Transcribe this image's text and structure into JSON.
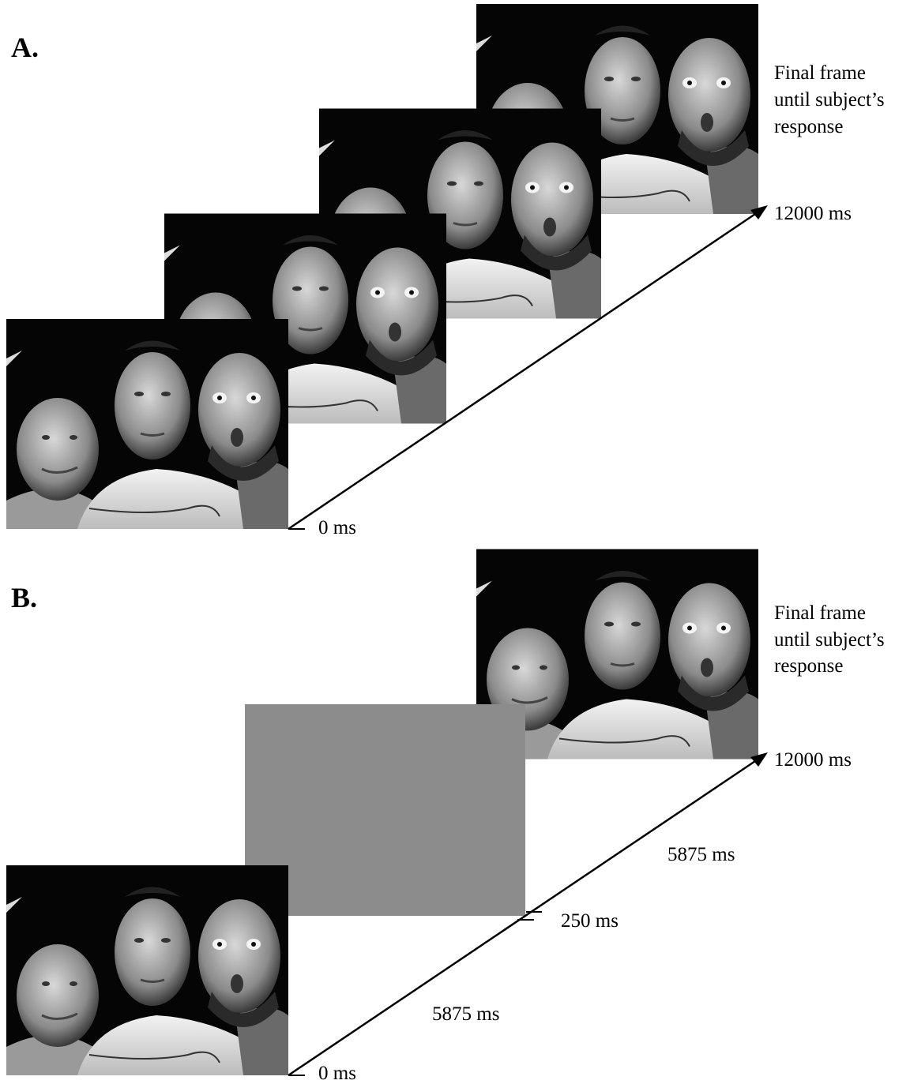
{
  "panels": [
    {
      "label": "A.",
      "final_note": [
        "Final frame",
        "until subject’s",
        "response"
      ],
      "end_time": "12000 ms",
      "start_time": "0 ms"
    },
    {
      "label": "B.",
      "final_note": [
        "Final frame",
        "until subject’s",
        "response"
      ],
      "end_time": "12000 ms",
      "start_time": "0 ms",
      "blank_time": "250 ms",
      "first_interval": "5875 ms",
      "second_interval": "5875 ms"
    }
  ]
}
